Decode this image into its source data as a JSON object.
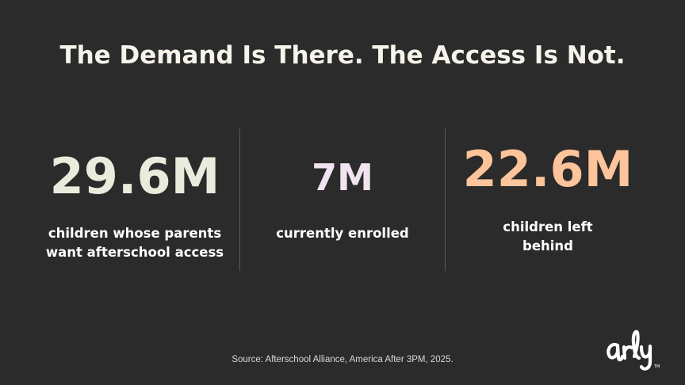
{
  "title": "The Demand Is There. The Access Is Not.",
  "stats": [
    {
      "value": "29.6M",
      "label_line1": "children whose parents",
      "label_line2": "want afterschool access",
      "color": "#e9ecdc"
    },
    {
      "value": "7M",
      "label_line1": "currently enrolled",
      "label_line2": "",
      "color": "#f1e4f0"
    },
    {
      "value": "22.6M",
      "label_line1": "children left",
      "label_line2": "behind",
      "color": "#fdc39a"
    }
  ],
  "source": "Source: Afterschool Alliance, America After 3PM, 2025.",
  "logo": {
    "text": "arly",
    "trademark": "TM"
  },
  "colors": {
    "background": "#2b2b2b",
    "divider": "#5a5a5a",
    "title": "#f5f3ea"
  }
}
